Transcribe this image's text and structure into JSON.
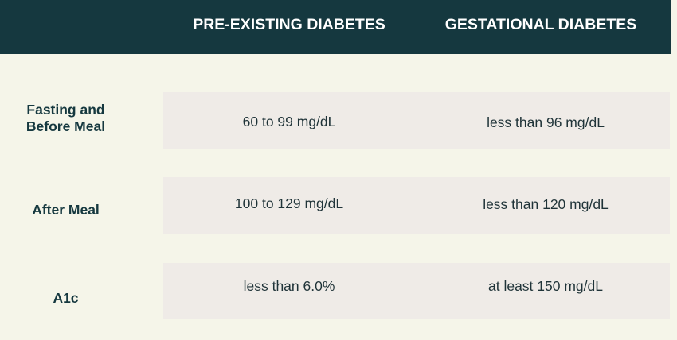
{
  "columns": [
    "PRE-EXISTING DIABETES",
    "GESTATIONAL DIABETES"
  ],
  "rows": [
    {
      "label_line1": "Fasting and",
      "label_line2": "Before Meal",
      "pre_existing": "60 to 99 mg/dL",
      "gestational": "less than 96 mg/dL"
    },
    {
      "label_line1": "After Meal",
      "label_line2": "",
      "pre_existing": "100 to 129 mg/dL",
      "gestational": "less than 120 mg/dL"
    },
    {
      "label_line1": "A1c",
      "label_line2": "",
      "pre_existing": "less than 6.0%",
      "gestational": "at least 150 mg/dL"
    }
  ],
  "colors": {
    "header_bg": "#15383f",
    "page_bg": "#f5f5e9",
    "row_bg": "#efebe7",
    "header_text": "#ffffff",
    "label_text": "#15383f",
    "cell_text": "#1f3338"
  }
}
